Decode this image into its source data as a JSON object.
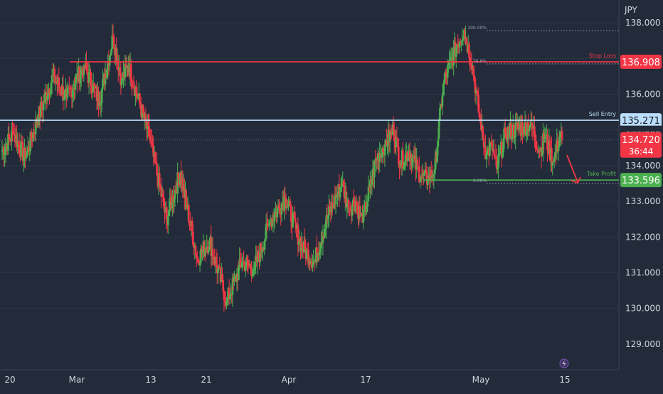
{
  "currency_label": "JPY",
  "colors": {
    "background": "#232b3a",
    "up": "#4caf50",
    "down": "#f23645",
    "stop_loss": "#f23645",
    "sell_entry": "#bbdefb",
    "take_profit": "#4caf50",
    "axis_text": "#d1d4dc"
  },
  "chart_data": {
    "type": "candlestick",
    "ylim": [
      128.6,
      138.4
    ],
    "y_ticks": [
      "138.000",
      "137.000",
      "136.000",
      "135.000",
      "134.000",
      "133.000",
      "132.000",
      "131.000",
      "130.000",
      "129.000"
    ],
    "x_ticks": [
      "20",
      "Mar",
      "13",
      "21",
      "Apr",
      "17",
      "May",
      "15"
    ],
    "last_price": {
      "value": "134.720",
      "countdown": "36:44"
    },
    "levels": [
      {
        "name": "Stop Loss",
        "price": "136.908"
      },
      {
        "name": "Sell Entry",
        "price": "135.271"
      },
      {
        "name": "Take Profit",
        "price": "133.596"
      }
    ],
    "fib_labels": [
      "100.00%",
      "78.6%",
      "0.00%"
    ],
    "trend_path": [
      [
        134.4,
        18
      ],
      [
        134.9,
        14
      ],
      [
        134.2,
        14
      ],
      [
        135.3,
        14
      ],
      [
        136.5,
        18
      ],
      [
        135.9,
        16
      ],
      [
        136.8,
        20
      ],
      [
        135.8,
        18
      ],
      [
        137.6,
        16
      ],
      [
        136.4,
        10
      ],
      [
        136.8,
        8
      ],
      [
        134.8,
        24
      ],
      [
        132.5,
        20
      ],
      [
        133.8,
        16
      ],
      [
        131.4,
        20
      ],
      [
        131.9,
        14
      ],
      [
        130.2,
        20
      ],
      [
        131.3,
        18
      ],
      [
        131.1,
        14
      ],
      [
        132.4,
        18
      ],
      [
        133.1,
        18
      ],
      [
        131.7,
        20
      ],
      [
        131.3,
        14
      ],
      [
        132.6,
        16
      ],
      [
        133.5,
        16
      ],
      [
        132.8,
        8
      ],
      [
        133.0,
        8
      ],
      [
        132.4,
        8
      ],
      [
        134.2,
        16
      ],
      [
        134.6,
        10
      ],
      [
        135.0,
        10
      ],
      [
        134.1,
        8
      ],
      [
        134.4,
        10
      ],
      [
        133.7,
        14
      ],
      [
        133.6,
        8
      ],
      [
        133.9,
        8
      ],
      [
        136.3,
        10
      ],
      [
        137.4,
        16
      ],
      [
        137.8,
        8
      ],
      [
        136.8,
        10
      ],
      [
        135.0,
        10
      ],
      [
        134.3,
        6
      ],
      [
        134.6,
        6
      ],
      [
        133.9,
        6
      ],
      [
        134.9,
        10
      ],
      [
        135.1,
        22
      ],
      [
        135.2,
        8
      ],
      [
        134.4,
        10
      ],
      [
        134.8,
        6
      ],
      [
        134.1,
        10
      ],
      [
        134.9,
        8
      ],
      [
        134.72,
        2
      ]
    ]
  }
}
